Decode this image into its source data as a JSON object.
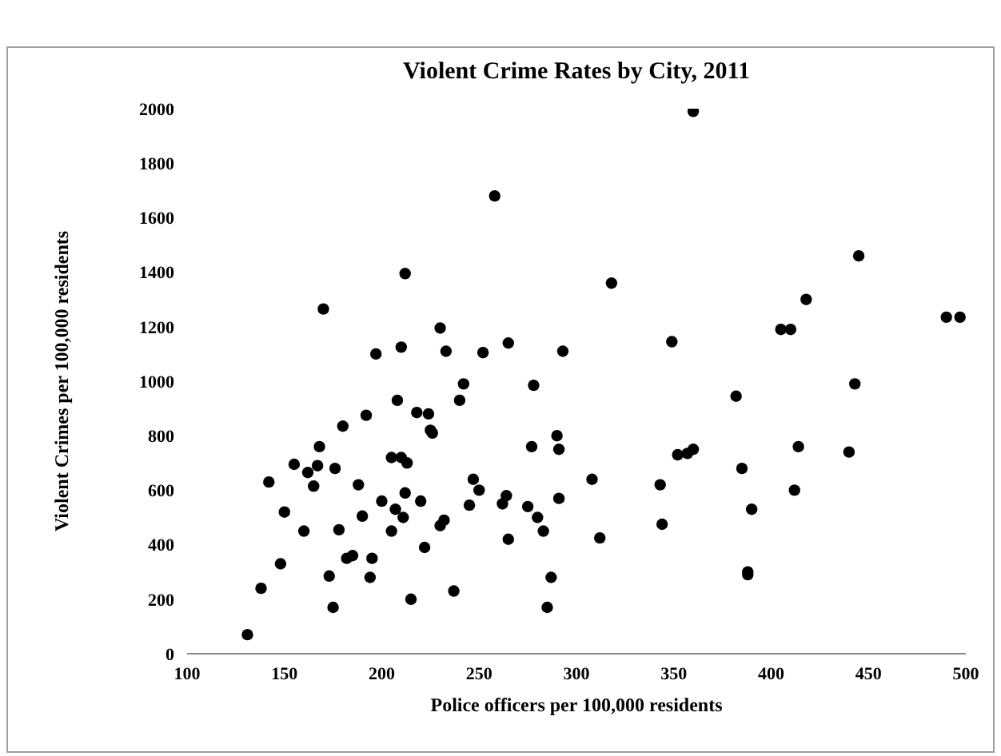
{
  "chart_data": {
    "type": "scatter",
    "title": "Violent Crime Rates by City, 2011",
    "xlabel": "Police officers per 100,000 residents",
    "ylabel": "Violent Crimes per 100,000 residents",
    "xlim": [
      100,
      500
    ],
    "xticks": [
      100,
      150,
      200,
      250,
      300,
      350,
      400,
      450,
      500
    ],
    "ylim": [
      0,
      2000
    ],
    "yticks": [
      0,
      200,
      400,
      600,
      800,
      1000,
      1200,
      1400,
      1600,
      1800,
      2000
    ],
    "grid": false,
    "legend": false,
    "marker": "circle",
    "series": [
      {
        "color": "#000000",
        "x": [
          131,
          138,
          142,
          148,
          150,
          155,
          160,
          162,
          165,
          167,
          168,
          170,
          173,
          175,
          176,
          178,
          180,
          182,
          185,
          188,
          190,
          192,
          194,
          195,
          197,
          200,
          205,
          205,
          207,
          208,
          210,
          210,
          211,
          212,
          212,
          213,
          215,
          218,
          220,
          222,
          224,
          225,
          226,
          230,
          230,
          232,
          233,
          237,
          240,
          242,
          245,
          247,
          250,
          252,
          258,
          262,
          264,
          265,
          265,
          275,
          277,
          278,
          280,
          283,
          285,
          287,
          290,
          291,
          291,
          293,
          308,
          312,
          318,
          343,
          344,
          349,
          352,
          357,
          360,
          360,
          382,
          385,
          388,
          388,
          390,
          405,
          410,
          412,
          414,
          418,
          440,
          443,
          445,
          490,
          497
        ],
        "values": [
          70,
          240,
          630,
          330,
          520,
          695,
          450,
          665,
          615,
          690,
          760,
          1265,
          285,
          170,
          680,
          455,
          835,
          350,
          360,
          620,
          505,
          875,
          280,
          350,
          1100,
          560,
          720,
          450,
          530,
          930,
          1125,
          720,
          500,
          590,
          1395,
          700,
          200,
          885,
          560,
          390,
          880,
          820,
          810,
          470,
          1195,
          490,
          1110,
          230,
          930,
          990,
          545,
          640,
          600,
          1105,
          1680,
          550,
          580,
          1140,
          420,
          540,
          760,
          985,
          500,
          450,
          170,
          280,
          800,
          750,
          570,
          1110,
          640,
          425,
          1360,
          620,
          475,
          1145,
          730,
          735,
          1990,
          750,
          945,
          680,
          290,
          300,
          530,
          1190,
          1190,
          600,
          760,
          1300,
          740,
          990,
          1460,
          1235,
          1235
        ]
      }
    ]
  }
}
